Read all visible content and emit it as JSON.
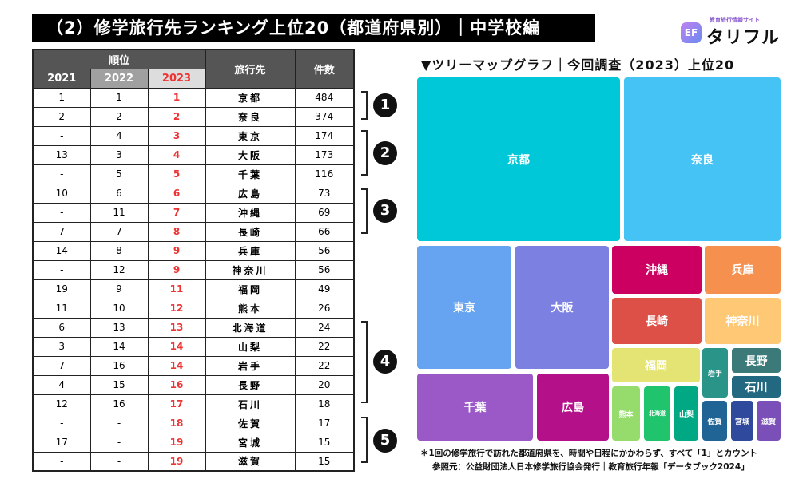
{
  "title": "（2）修学旅行先ランキング上位20（都道府県別）｜中学校編",
  "logo": {
    "sub": "教育旅行情報サイト",
    "name": "タリフル",
    "mark": "EF"
  },
  "table": {
    "header_rank": "順位",
    "header_dest": "旅行先",
    "header_count": "件数",
    "years": [
      "2021",
      "2022",
      "2023"
    ],
    "rows": [
      {
        "y2021": "1",
        "y2022": "1",
        "y2023": "1",
        "dest": "京都",
        "count": "484"
      },
      {
        "y2021": "2",
        "y2022": "2",
        "y2023": "2",
        "dest": "奈良",
        "count": "374"
      },
      {
        "y2021": "-",
        "y2022": "4",
        "y2023": "3",
        "dest": "東京",
        "count": "174"
      },
      {
        "y2021": "13",
        "y2022": "3",
        "y2023": "4",
        "dest": "大阪",
        "count": "173"
      },
      {
        "y2021": "-",
        "y2022": "5",
        "y2023": "5",
        "dest": "千葉",
        "count": "116"
      },
      {
        "y2021": "10",
        "y2022": "6",
        "y2023": "6",
        "dest": "広島",
        "count": "73"
      },
      {
        "y2021": "-",
        "y2022": "11",
        "y2023": "7",
        "dest": "沖縄",
        "count": "69"
      },
      {
        "y2021": "7",
        "y2022": "7",
        "y2023": "8",
        "dest": "長崎",
        "count": "66"
      },
      {
        "y2021": "14",
        "y2022": "8",
        "y2023": "9",
        "dest": "兵庫",
        "count": "56"
      },
      {
        "y2021": "-",
        "y2022": "12",
        "y2023": "9",
        "dest": "神奈川",
        "count": "56"
      },
      {
        "y2021": "19",
        "y2022": "9",
        "y2023": "11",
        "dest": "福岡",
        "count": "49"
      },
      {
        "y2021": "11",
        "y2022": "10",
        "y2023": "12",
        "dest": "熊本",
        "count": "26"
      },
      {
        "y2021": "6",
        "y2022": "13",
        "y2023": "13",
        "dest": "北海道",
        "count": "24"
      },
      {
        "y2021": "3",
        "y2022": "14",
        "y2023": "14",
        "dest": "山梨",
        "count": "22"
      },
      {
        "y2021": "7",
        "y2022": "16",
        "y2023": "14",
        "dest": "岩手",
        "count": "22"
      },
      {
        "y2021": "4",
        "y2022": "15",
        "y2023": "16",
        "dest": "長野",
        "count": "20"
      },
      {
        "y2021": "12",
        "y2022": "16",
        "y2023": "17",
        "dest": "石川",
        "count": "18"
      },
      {
        "y2021": "-",
        "y2022": "-",
        "y2023": "18",
        "dest": "佐賀",
        "count": "17"
      },
      {
        "y2021": "17",
        "y2022": "-",
        "y2023": "19",
        "dest": "宮城",
        "count": "15"
      },
      {
        "y2021": "-",
        "y2022": "-",
        "y2023": "19",
        "dest": "滋賀",
        "count": "15"
      }
    ]
  },
  "groups": [
    "1",
    "2",
    "3",
    "4",
    "5"
  ],
  "treemap": {
    "title": "▼ツリーマップグラフ｜今回調査（2023）上位20",
    "tiles": [
      {
        "name": "京都",
        "value": 484,
        "color": "#00c8d8"
      },
      {
        "name": "奈良",
        "value": 374,
        "color": "#45c3f5"
      },
      {
        "name": "東京",
        "value": 174,
        "color": "#66a3f0"
      },
      {
        "name": "大阪",
        "value": 173,
        "color": "#7c80e0"
      },
      {
        "name": "千葉",
        "value": 116,
        "color": "#9b59c8"
      },
      {
        "name": "広島",
        "value": 73,
        "color": "#b4108a"
      },
      {
        "name": "沖縄",
        "value": 69,
        "color": "#cc0060"
      },
      {
        "name": "兵庫",
        "value": 56,
        "color": "#f5904e"
      },
      {
        "name": "長崎",
        "value": 66,
        "color": "#dc5048"
      },
      {
        "name": "神奈川",
        "value": 56,
        "color": "#fec874"
      },
      {
        "name": "福岡",
        "value": 49,
        "color": "#e4e474"
      },
      {
        "name": "岩手",
        "value": 22,
        "color": "#2a9488"
      },
      {
        "name": "長野",
        "value": 20,
        "color": "#3c7a7a"
      },
      {
        "name": "石川",
        "value": 18,
        "color": "#226880"
      },
      {
        "name": "熊本",
        "value": 26,
        "color": "#96dc6c"
      },
      {
        "name": "北海道",
        "value": 24,
        "color": "#20c46c"
      },
      {
        "name": "山梨",
        "value": 22,
        "color": "#00a884"
      },
      {
        "name": "佐賀",
        "value": 17,
        "color": "#1f6494"
      },
      {
        "name": "宮城",
        "value": 15,
        "color": "#2f4a9c"
      },
      {
        "name": "滋賀",
        "value": 15,
        "color": "#7a50b8"
      }
    ]
  },
  "note": "＊1回の修学旅行で訪れた都道府県を、時間や日程にかかわらず、すべて「1」とカウント",
  "source": "参照元：公益財団法人日本修学旅行協会発行｜教育旅行年報「データブック2024」"
}
